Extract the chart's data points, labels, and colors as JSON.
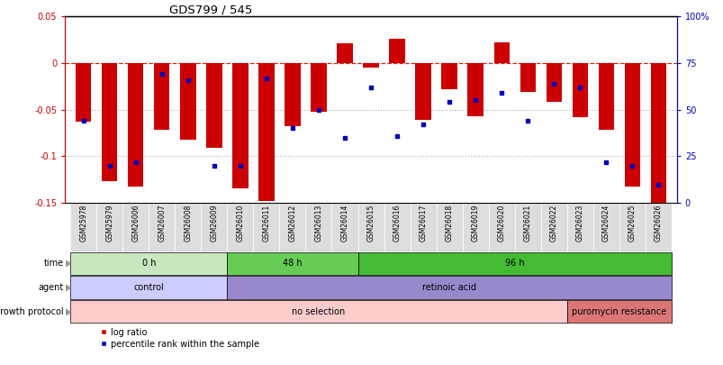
{
  "title": "GDS799 / 545",
  "samples": [
    "GSM25978",
    "GSM25979",
    "GSM26006",
    "GSM26007",
    "GSM26008",
    "GSM26009",
    "GSM26010",
    "GSM26011",
    "GSM26012",
    "GSM26013",
    "GSM26014",
    "GSM26015",
    "GSM26016",
    "GSM26017",
    "GSM26018",
    "GSM26019",
    "GSM26020",
    "GSM26021",
    "GSM26022",
    "GSM26023",
    "GSM26024",
    "GSM26025",
    "GSM26026"
  ],
  "log_ratio": [
    -0.063,
    -0.127,
    -0.132,
    -0.072,
    -0.082,
    -0.091,
    -0.134,
    -0.148,
    -0.068,
    -0.052,
    0.021,
    -0.005,
    0.026,
    -0.061,
    -0.028,
    -0.057,
    0.022,
    -0.031,
    -0.042,
    -0.058,
    -0.072,
    -0.132,
    -0.157
  ],
  "percentile": [
    44,
    20,
    22,
    69,
    66,
    20,
    20,
    67,
    40,
    50,
    35,
    62,
    36,
    42,
    54,
    55,
    59,
    44,
    64,
    62,
    22,
    20,
    10
  ],
  "ylim_left": [
    -0.15,
    0.05
  ],
  "ylim_right": [
    0,
    100
  ],
  "yticks_left": [
    -0.15,
    -0.1,
    -0.05,
    0.0,
    0.05
  ],
  "yticks_right": [
    0,
    25,
    50,
    75,
    100
  ],
  "ytick_left_labels": [
    "-0.15",
    "-0.1",
    "-0.05",
    "0",
    "0.05"
  ],
  "ytick_right_labels": [
    "0",
    "25",
    "50",
    "75",
    "100%"
  ],
  "bar_color": "#cc0000",
  "dot_color": "#0000bb",
  "hline_dash_color": "#cc2222",
  "hline_dot_color": "#aaaaaa",
  "time_groups": [
    {
      "label": "0 h",
      "start": 0,
      "end": 5,
      "color": "#c8e8c0"
    },
    {
      "label": "48 h",
      "start": 6,
      "end": 10,
      "color": "#66cc55"
    },
    {
      "label": "96 h",
      "start": 11,
      "end": 22,
      "color": "#44bb33"
    }
  ],
  "agent_groups": [
    {
      "label": "control",
      "start": 0,
      "end": 5,
      "color": "#ccccff"
    },
    {
      "label": "retinoic acid",
      "start": 6,
      "end": 22,
      "color": "#9988cc"
    }
  ],
  "growth_groups": [
    {
      "label": "no selection",
      "start": 0,
      "end": 18,
      "color": "#ffcccc"
    },
    {
      "label": "puromycin resistance",
      "start": 19,
      "end": 22,
      "color": "#dd7777"
    }
  ],
  "row_labels": [
    "time",
    "agent",
    "growth protocol"
  ],
  "legend_bar_color": "#cc0000",
  "legend_dot_color": "#0000bb",
  "legend_bar_label": "log ratio",
  "legend_dot_label": "percentile rank within the sample",
  "xtick_bg": "#dddddd",
  "chart_border": "#000000",
  "bg_color": "#ffffff"
}
